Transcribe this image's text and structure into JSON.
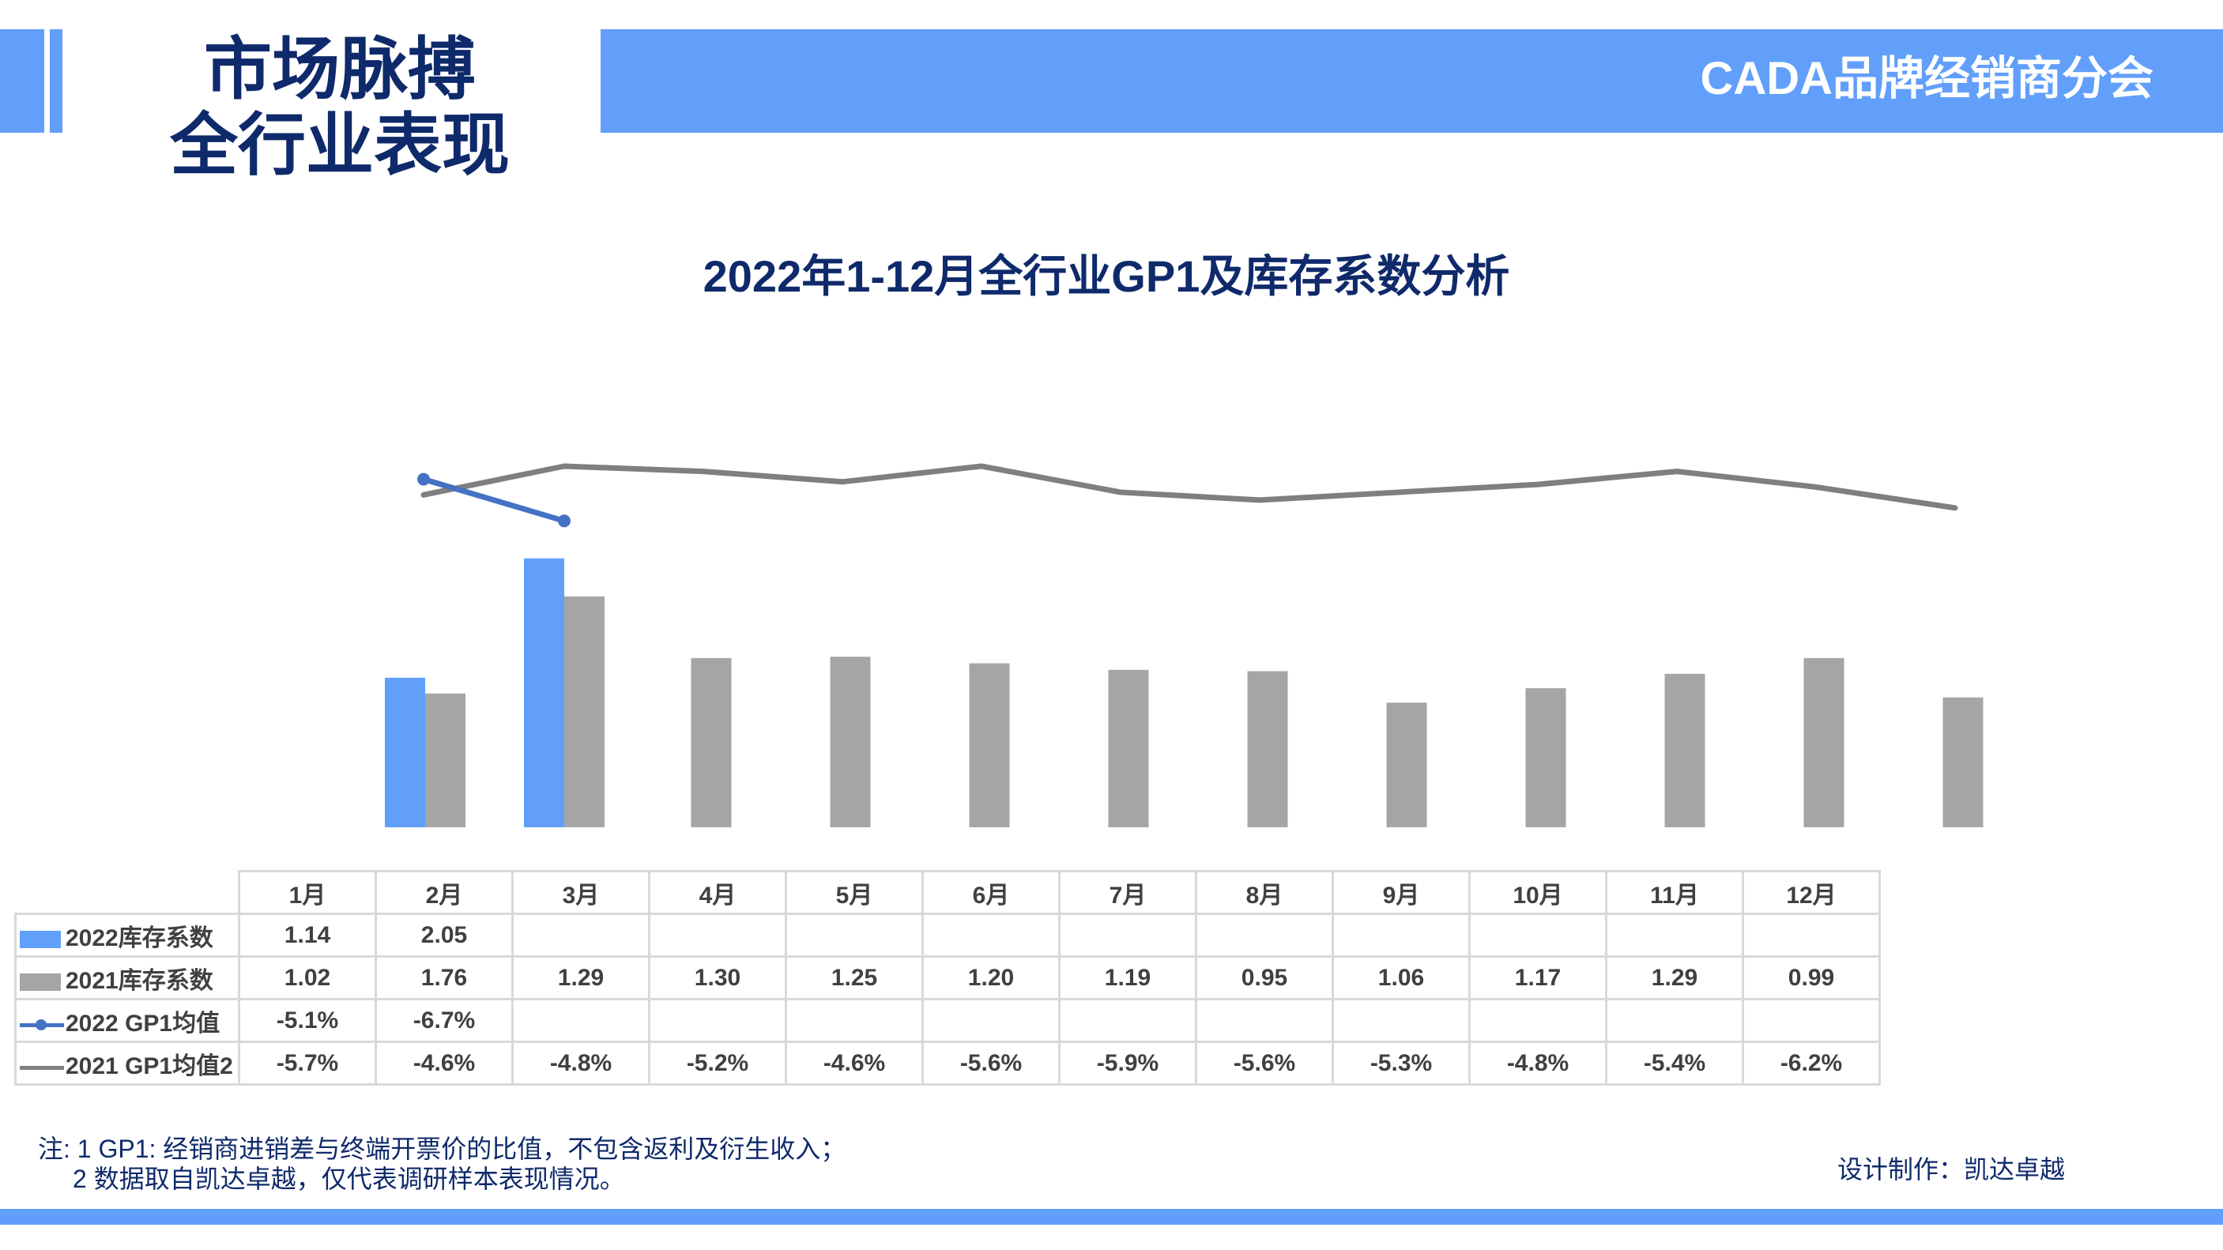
{
  "header": {
    "section_title_line1": "市场脉搏",
    "section_title_line2": "全行业表现",
    "org_name": "CADA品牌经销商分会"
  },
  "colors": {
    "accent_blue": "#619ffb",
    "navy": "#0f2a6b",
    "bar_2021_gray": "#a5a5a5",
    "line_2022_blue": "#4472c4",
    "line_2021_gray": "#7f7f7f",
    "table_border": "#d9d9d9"
  },
  "chart_data": {
    "type": "bar",
    "title": "2022年1-12月全行业GP1及库存系数分析",
    "categories": [
      "1月",
      "2月",
      "3月",
      "4月",
      "5月",
      "6月",
      "7月",
      "8月",
      "9月",
      "10月",
      "11月",
      "12月"
    ],
    "series": [
      {
        "name": "2022库存系数",
        "kind": "bar",
        "color": "#619ffb",
        "values": [
          1.14,
          2.05,
          null,
          null,
          null,
          null,
          null,
          null,
          null,
          null,
          null,
          null
        ]
      },
      {
        "name": "2021库存系数",
        "kind": "bar",
        "color": "#a5a5a5",
        "values": [
          1.02,
          1.76,
          1.29,
          1.3,
          1.25,
          1.2,
          1.19,
          0.95,
          1.06,
          1.17,
          1.29,
          0.99
        ]
      },
      {
        "name": "2022 GP1均值",
        "kind": "line",
        "color": "#4472c4",
        "marker": "circle",
        "unit": "%",
        "values": [
          -5.1,
          -6.7,
          null,
          null,
          null,
          null,
          null,
          null,
          null,
          null,
          null,
          null
        ]
      },
      {
        "name": "2021 GP1均值2",
        "kind": "line",
        "color": "#7f7f7f",
        "unit": "%",
        "values": [
          -5.7,
          -4.6,
          -4.8,
          -5.2,
          -4.6,
          -5.6,
          -5.9,
          -5.6,
          -5.3,
          -4.8,
          -5.4,
          -6.2
        ]
      }
    ],
    "xlabel": "",
    "ylabel": "",
    "grid": false,
    "legend_position": "data-table"
  },
  "table": {
    "headers": [
      "1月",
      "2月",
      "3月",
      "4月",
      "5月",
      "6月",
      "7月",
      "8月",
      "9月",
      "10月",
      "11月",
      "12月"
    ],
    "rows": [
      {
        "label": "2022库存系数",
        "cells": [
          "1.14",
          "2.05",
          "",
          "",
          "",
          "",
          "",
          "",
          "",
          "",
          "",
          ""
        ]
      },
      {
        "label": "2021库存系数",
        "cells": [
          "1.02",
          "1.76",
          "1.29",
          "1.30",
          "1.25",
          "1.20",
          "1.19",
          "0.95",
          "1.06",
          "1.17",
          "1.29",
          "0.99"
        ]
      },
      {
        "label": "2022 GP1均值",
        "cells": [
          "-5.1%",
          "-6.7%",
          "",
          "",
          "",
          "",
          "",
          "",
          "",
          "",
          "",
          ""
        ]
      },
      {
        "label": "2021 GP1均值2",
        "cells": [
          "-5.7%",
          "-4.6%",
          "-4.8%",
          "-5.2%",
          "-4.6%",
          "-5.6%",
          "-5.9%",
          "-5.6%",
          "-5.3%",
          "-4.8%",
          "-5.4%",
          "-6.2%"
        ]
      }
    ]
  },
  "footer": {
    "note_line1": "注: 1  GP1: 经销商进销差与终端开票价的比值，不包含返利及衍生收入；",
    "note_line2": "2 数据取自凯达卓越，仅代表调研样本表现情况。",
    "credit": "设计制作：凯达卓越"
  }
}
